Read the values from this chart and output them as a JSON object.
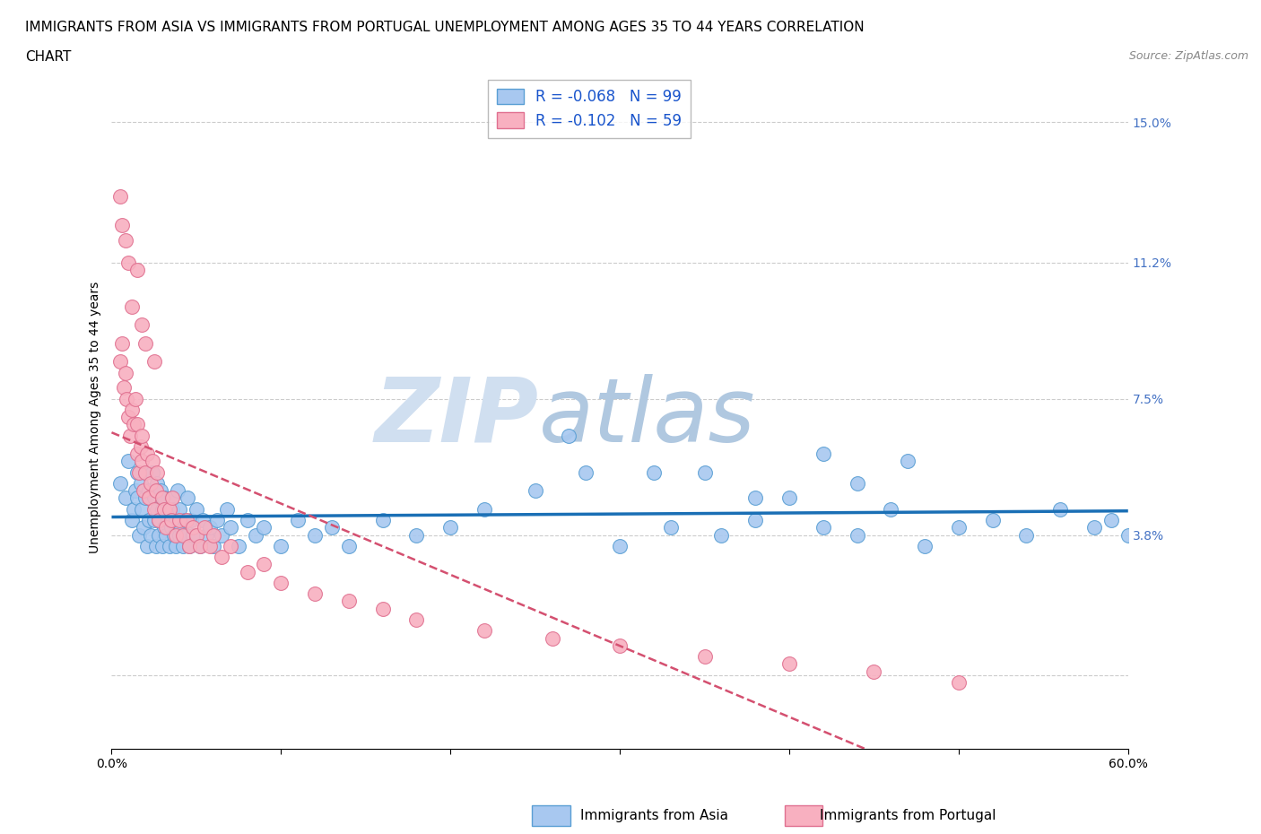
{
  "title_line1": "IMMIGRANTS FROM ASIA VS IMMIGRANTS FROM PORTUGAL UNEMPLOYMENT AMONG AGES 35 TO 44 YEARS CORRELATION",
  "title_line2": "CHART",
  "source": "Source: ZipAtlas.com",
  "ylabel": "Unemployment Among Ages 35 to 44 years",
  "xlim": [
    0.0,
    0.6
  ],
  "ylim": [
    -0.02,
    0.16
  ],
  "ytick_positions": [
    0.0,
    0.038,
    0.075,
    0.112,
    0.15
  ],
  "ytick_labels": [
    "",
    "3.8%",
    "7.5%",
    "11.2%",
    "15.0%"
  ],
  "xtick_positions": [
    0.0,
    0.1,
    0.2,
    0.3,
    0.4,
    0.5,
    0.6
  ],
  "xtick_labels": [
    "0.0%",
    "",
    "",
    "",
    "",
    "",
    "60.0%"
  ],
  "grid_color": "#cccccc",
  "background_color": "#ffffff",
  "asia_color": "#a8c8f0",
  "asia_edge_color": "#5a9fd4",
  "portugal_color": "#f8b0c0",
  "portugal_edge_color": "#e07090",
  "asia_R": -0.068,
  "asia_N": 99,
  "portugal_R": -0.102,
  "portugal_N": 59,
  "asia_trend_color": "#1a6fb5",
  "portugal_trend_color": "#d45070",
  "watermark_zip": "ZIP",
  "watermark_atlas": "atlas",
  "watermark_color_zip": "#c8d8e8",
  "watermark_color_atlas": "#a8c0d8",
  "legend_label_asia": "Immigrants from Asia",
  "legend_label_portugal": "Immigrants from Portugal",
  "asia_scatter_x": [
    0.005,
    0.008,
    0.01,
    0.012,
    0.013,
    0.014,
    0.015,
    0.015,
    0.016,
    0.017,
    0.018,
    0.019,
    0.02,
    0.02,
    0.021,
    0.022,
    0.022,
    0.023,
    0.024,
    0.025,
    0.025,
    0.026,
    0.027,
    0.027,
    0.028,
    0.028,
    0.029,
    0.03,
    0.03,
    0.031,
    0.031,
    0.032,
    0.033,
    0.034,
    0.035,
    0.035,
    0.036,
    0.037,
    0.038,
    0.038,
    0.039,
    0.04,
    0.04,
    0.041,
    0.042,
    0.043,
    0.044,
    0.045,
    0.046,
    0.047,
    0.048,
    0.05,
    0.052,
    0.054,
    0.056,
    0.058,
    0.06,
    0.062,
    0.065,
    0.068,
    0.07,
    0.075,
    0.08,
    0.085,
    0.09,
    0.1,
    0.11,
    0.12,
    0.13,
    0.14,
    0.16,
    0.18,
    0.2,
    0.22,
    0.25,
    0.28,
    0.3,
    0.33,
    0.36,
    0.38,
    0.4,
    0.42,
    0.44,
    0.46,
    0.48,
    0.5,
    0.52,
    0.54,
    0.56,
    0.58,
    0.59,
    0.6,
    0.35,
    0.42,
    0.47,
    0.27,
    0.32,
    0.38,
    0.44
  ],
  "asia_scatter_y": [
    0.052,
    0.048,
    0.058,
    0.042,
    0.045,
    0.05,
    0.055,
    0.048,
    0.038,
    0.052,
    0.045,
    0.04,
    0.048,
    0.055,
    0.035,
    0.042,
    0.05,
    0.038,
    0.055,
    0.042,
    0.048,
    0.035,
    0.045,
    0.052,
    0.038,
    0.042,
    0.05,
    0.035,
    0.045,
    0.048,
    0.04,
    0.038,
    0.042,
    0.035,
    0.048,
    0.04,
    0.045,
    0.038,
    0.042,
    0.035,
    0.05,
    0.038,
    0.045,
    0.04,
    0.035,
    0.042,
    0.038,
    0.048,
    0.035,
    0.042,
    0.038,
    0.045,
    0.035,
    0.042,
    0.038,
    0.04,
    0.035,
    0.042,
    0.038,
    0.045,
    0.04,
    0.035,
    0.042,
    0.038,
    0.04,
    0.035,
    0.042,
    0.038,
    0.04,
    0.035,
    0.042,
    0.038,
    0.04,
    0.045,
    0.05,
    0.055,
    0.035,
    0.04,
    0.038,
    0.042,
    0.048,
    0.04,
    0.038,
    0.045,
    0.035,
    0.04,
    0.042,
    0.038,
    0.045,
    0.04,
    0.042,
    0.038,
    0.055,
    0.06,
    0.058,
    0.065,
    0.055,
    0.048,
    0.052
  ],
  "portugal_scatter_x": [
    0.005,
    0.006,
    0.007,
    0.008,
    0.009,
    0.01,
    0.011,
    0.012,
    0.013,
    0.014,
    0.015,
    0.015,
    0.016,
    0.017,
    0.018,
    0.018,
    0.019,
    0.02,
    0.021,
    0.022,
    0.023,
    0.024,
    0.025,
    0.026,
    0.027,
    0.028,
    0.03,
    0.031,
    0.032,
    0.034,
    0.035,
    0.036,
    0.038,
    0.04,
    0.042,
    0.044,
    0.046,
    0.048,
    0.05,
    0.052,
    0.055,
    0.058,
    0.06,
    0.065,
    0.07,
    0.08,
    0.09,
    0.1,
    0.12,
    0.14,
    0.16,
    0.18,
    0.22,
    0.26,
    0.3,
    0.35,
    0.4,
    0.45,
    0.5
  ],
  "portugal_scatter_y": [
    0.085,
    0.09,
    0.078,
    0.082,
    0.075,
    0.07,
    0.065,
    0.072,
    0.068,
    0.075,
    0.06,
    0.068,
    0.055,
    0.062,
    0.058,
    0.065,
    0.05,
    0.055,
    0.06,
    0.048,
    0.052,
    0.058,
    0.045,
    0.05,
    0.055,
    0.042,
    0.048,
    0.045,
    0.04,
    0.045,
    0.042,
    0.048,
    0.038,
    0.042,
    0.038,
    0.042,
    0.035,
    0.04,
    0.038,
    0.035,
    0.04,
    0.035,
    0.038,
    0.032,
    0.035,
    0.028,
    0.03,
    0.025,
    0.022,
    0.02,
    0.018,
    0.015,
    0.012,
    0.01,
    0.008,
    0.005,
    0.003,
    0.001,
    -0.002
  ],
  "portugal_high_x": [
    0.005,
    0.006,
    0.008,
    0.01,
    0.012,
    0.015,
    0.018,
    0.02,
    0.025
  ],
  "portugal_high_y": [
    0.13,
    0.122,
    0.118,
    0.112,
    0.1,
    0.11,
    0.095,
    0.09,
    0.085
  ],
  "title_fontsize": 11,
  "axis_label_fontsize": 10,
  "tick_fontsize": 10,
  "legend_fontsize": 12
}
